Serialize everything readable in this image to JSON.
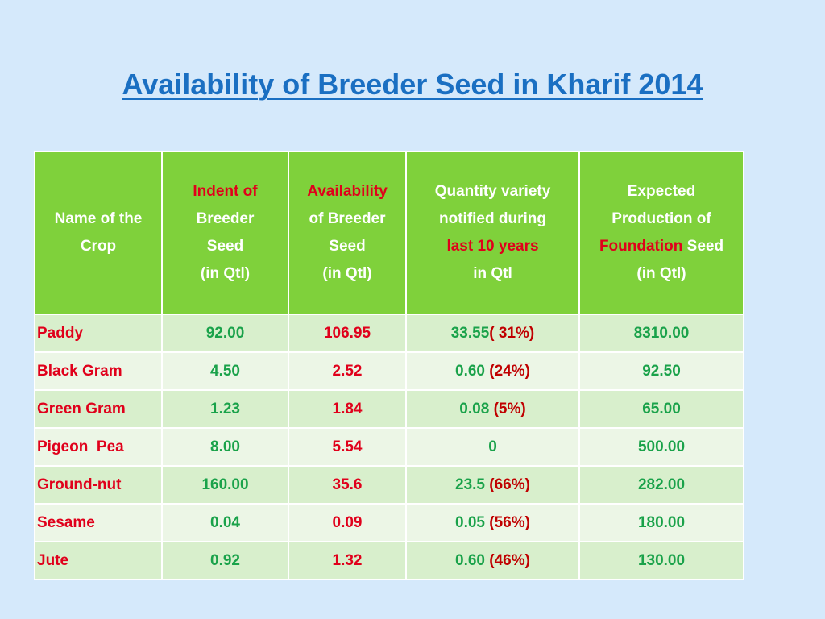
{
  "title": "Availability of Breeder Seed in Kharif 2014",
  "colors": {
    "background": "#d5e9fb",
    "title": "#1a6fc2",
    "header_bg": "#7fd13b",
    "row_odd": "#d8efcc",
    "row_even": "#ecf6e6",
    "red_text": "#e0001b",
    "green_text": "#1aa24a",
    "white_text": "#ffffff"
  },
  "headers": {
    "crop": {
      "line1": "Name of the",
      "line2": "Crop"
    },
    "indent": {
      "line1": "Indent of",
      "line2": "Breeder",
      "line3": "Seed",
      "line4": "(in Qtl)"
    },
    "availability": {
      "line1": "Availability",
      "line2": "of Breeder",
      "line3": "Seed",
      "line4": "(in Qtl)"
    },
    "quantity": {
      "line1": "Quantity  variety",
      "line2": "notified during",
      "line3": "last 10 years",
      "line4": "in Qtl"
    },
    "expected": {
      "line1": "Expected",
      "line2": "Production of",
      "line3_red": "Foundation",
      "line3_white": "Seed",
      "line4": "(in Qtl)"
    }
  },
  "rows": [
    {
      "crop": "Paddy",
      "indent": "92.00",
      "availability": "106.95",
      "quantity": "33.55",
      "quantity_pct": "( 31%)",
      "expected": "8310.00"
    },
    {
      "crop": "Black Gram",
      "indent": "4.50",
      "availability": "2.52",
      "quantity": "0.60",
      "quantity_pct": "(24%)",
      "expected": "92.50"
    },
    {
      "crop": "Green Gram",
      "indent": "1.23",
      "availability": "1.84",
      "quantity": "0.08",
      "quantity_pct": "(5%)",
      "expected": "65.00"
    },
    {
      "crop": "Pigeon  Pea",
      "indent": "8.00",
      "availability": "5.54",
      "quantity": "0",
      "quantity_pct": "",
      "expected": "500.00"
    },
    {
      "crop": "Ground-nut",
      "indent": "160.00",
      "availability": "35.6",
      "quantity": "23.5",
      "quantity_pct": "(66%)",
      "expected": "282.00"
    },
    {
      "crop": "Sesame",
      "indent": "0.04",
      "availability": "0.09",
      "quantity": "0.05",
      "quantity_pct": "(56%)",
      "expected": "180.00"
    },
    {
      "crop": "Jute",
      "indent": "0.92",
      "availability": "1.32",
      "quantity": "0.60",
      "quantity_pct": "(46%)",
      "expected": "130.00"
    }
  ]
}
